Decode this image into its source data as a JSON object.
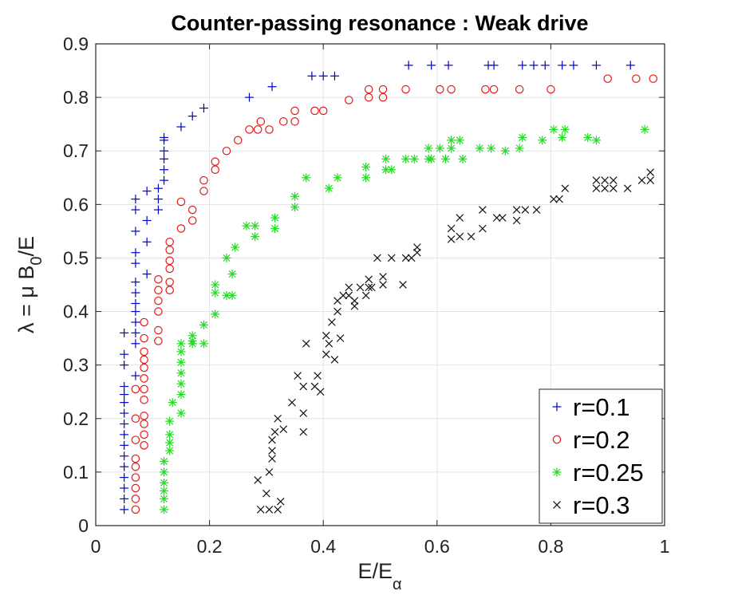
{
  "chart_data": {
    "type": "scatter",
    "title": "Counter-passing resonance : Weak drive",
    "xlabel": "E/E",
    "xlabel_sub": "α",
    "ylabel_pre": "λ = μ B",
    "ylabel_sub": "0",
    "ylabel_post": "/E",
    "xlim": [
      0,
      1
    ],
    "ylim": [
      0,
      0.9
    ],
    "xticks": [
      0,
      0.2,
      0.4,
      0.6,
      0.8,
      1
    ],
    "xtick_labels": [
      "0",
      "0.2",
      "0.4",
      "0.6",
      "0.8",
      "1"
    ],
    "yticks": [
      0,
      0.1,
      0.2,
      0.3,
      0.4,
      0.5,
      0.6,
      0.7,
      0.8,
      0.9
    ],
    "ytick_labels": [
      "0",
      "0.1",
      "0.2",
      "0.3",
      "0.4",
      "0.5",
      "0.6",
      "0.7",
      "0.8",
      "0.9"
    ],
    "grid": true,
    "legend_position": "bottom-right",
    "series": [
      {
        "name": "r=0.1",
        "marker": "plus",
        "color": "#0000cc",
        "x": [
          0.05,
          0.05,
          0.05,
          0.05,
          0.05,
          0.05,
          0.05,
          0.05,
          0.05,
          0.05,
          0.05,
          0.05,
          0.05,
          0.05,
          0.05,
          0.05,
          0.07,
          0.07,
          0.07,
          0.07,
          0.07,
          0.07,
          0.07,
          0.07,
          0.07,
          0.07,
          0.07,
          0.07,
          0.07,
          0.09,
          0.09,
          0.09,
          0.09,
          0.11,
          0.11,
          0.11,
          0.12,
          0.12,
          0.12,
          0.12,
          0.12,
          0.12,
          0.15,
          0.17,
          0.19,
          0.27,
          0.31,
          0.38,
          0.4,
          0.42,
          0.55,
          0.59,
          0.62,
          0.69,
          0.7,
          0.75,
          0.77,
          0.79,
          0.82,
          0.84,
          0.88,
          0.94
        ],
        "y": [
          0.03,
          0.05,
          0.07,
          0.09,
          0.11,
          0.13,
          0.15,
          0.17,
          0.19,
          0.21,
          0.23,
          0.245,
          0.26,
          0.3,
          0.32,
          0.36,
          0.28,
          0.34,
          0.36,
          0.38,
          0.4,
          0.415,
          0.435,
          0.455,
          0.49,
          0.51,
          0.55,
          0.59,
          0.61,
          0.47,
          0.53,
          0.57,
          0.625,
          0.59,
          0.61,
          0.63,
          0.645,
          0.665,
          0.685,
          0.7,
          0.72,
          0.725,
          0.745,
          0.765,
          0.78,
          0.8,
          0.82,
          0.84,
          0.84,
          0.84,
          0.86,
          0.86,
          0.86,
          0.86,
          0.86,
          0.86,
          0.86,
          0.86,
          0.86,
          0.86,
          0.86,
          0.86
        ]
      },
      {
        "name": "r=0.2",
        "marker": "circle",
        "color": "#e31a1c",
        "x": [
          0.07,
          0.07,
          0.07,
          0.07,
          0.07,
          0.07,
          0.07,
          0.07,
          0.07,
          0.085,
          0.085,
          0.085,
          0.085,
          0.085,
          0.085,
          0.085,
          0.085,
          0.085,
          0.085,
          0.085,
          0.085,
          0.11,
          0.11,
          0.11,
          0.11,
          0.11,
          0.11,
          0.13,
          0.13,
          0.13,
          0.13,
          0.13,
          0.13,
          0.15,
          0.15,
          0.17,
          0.17,
          0.19,
          0.19,
          0.21,
          0.21,
          0.23,
          0.25,
          0.27,
          0.285,
          0.29,
          0.305,
          0.33,
          0.35,
          0.35,
          0.385,
          0.4,
          0.445,
          0.48,
          0.48,
          0.505,
          0.505,
          0.545,
          0.605,
          0.625,
          0.685,
          0.7,
          0.745,
          0.8,
          0.9,
          0.95,
          0.98
        ],
        "y": [
          0.03,
          0.05,
          0.07,
          0.09,
          0.11,
          0.125,
          0.16,
          0.2,
          0.255,
          0.15,
          0.17,
          0.19,
          0.205,
          0.235,
          0.255,
          0.275,
          0.295,
          0.31,
          0.325,
          0.35,
          0.38,
          0.345,
          0.365,
          0.4,
          0.42,
          0.44,
          0.46,
          0.44,
          0.455,
          0.48,
          0.495,
          0.515,
          0.53,
          0.555,
          0.605,
          0.57,
          0.59,
          0.625,
          0.645,
          0.665,
          0.68,
          0.7,
          0.72,
          0.74,
          0.74,
          0.755,
          0.74,
          0.755,
          0.755,
          0.775,
          0.775,
          0.775,
          0.795,
          0.8,
          0.815,
          0.8,
          0.815,
          0.815,
          0.815,
          0.815,
          0.815,
          0.815,
          0.815,
          0.815,
          0.835,
          0.835,
          0.835
        ]
      },
      {
        "name": "r=0.25",
        "marker": "star",
        "color": "#22dd22",
        "x": [
          0.12,
          0.12,
          0.12,
          0.12,
          0.12,
          0.12,
          0.13,
          0.13,
          0.13,
          0.13,
          0.135,
          0.15,
          0.15,
          0.15,
          0.15,
          0.15,
          0.15,
          0.15,
          0.17,
          0.17,
          0.17,
          0.19,
          0.19,
          0.21,
          0.21,
          0.21,
          0.23,
          0.23,
          0.24,
          0.24,
          0.245,
          0.265,
          0.28,
          0.28,
          0.315,
          0.315,
          0.35,
          0.35,
          0.37,
          0.41,
          0.425,
          0.475,
          0.475,
          0.51,
          0.51,
          0.52,
          0.545,
          0.56,
          0.585,
          0.585,
          0.59,
          0.605,
          0.615,
          0.625,
          0.625,
          0.64,
          0.645,
          0.675,
          0.695,
          0.72,
          0.745,
          0.75,
          0.785,
          0.805,
          0.82,
          0.825,
          0.865,
          0.88,
          0.965
        ],
        "y": [
          0.03,
          0.05,
          0.065,
          0.08,
          0.1,
          0.12,
          0.14,
          0.155,
          0.17,
          0.195,
          0.23,
          0.21,
          0.245,
          0.265,
          0.285,
          0.305,
          0.325,
          0.34,
          0.34,
          0.345,
          0.355,
          0.34,
          0.375,
          0.395,
          0.435,
          0.45,
          0.43,
          0.5,
          0.43,
          0.47,
          0.52,
          0.56,
          0.54,
          0.56,
          0.555,
          0.575,
          0.595,
          0.615,
          0.65,
          0.63,
          0.65,
          0.65,
          0.67,
          0.665,
          0.685,
          0.665,
          0.685,
          0.685,
          0.685,
          0.705,
          0.685,
          0.705,
          0.685,
          0.705,
          0.72,
          0.72,
          0.685,
          0.705,
          0.705,
          0.7,
          0.705,
          0.725,
          0.72,
          0.74,
          0.725,
          0.74,
          0.725,
          0.72,
          0.74
        ]
      },
      {
        "name": "r=0.3",
        "marker": "x",
        "color": "#111111",
        "x": [
          0.285,
          0.29,
          0.3,
          0.305,
          0.305,
          0.31,
          0.31,
          0.31,
          0.315,
          0.32,
          0.325,
          0.32,
          0.33,
          0.345,
          0.355,
          0.365,
          0.365,
          0.365,
          0.37,
          0.385,
          0.39,
          0.395,
          0.405,
          0.405,
          0.41,
          0.415,
          0.42,
          0.425,
          0.425,
          0.43,
          0.435,
          0.445,
          0.445,
          0.455,
          0.455,
          0.465,
          0.475,
          0.48,
          0.48,
          0.485,
          0.495,
          0.505,
          0.505,
          0.52,
          0.54,
          0.545,
          0.555,
          0.565,
          0.565,
          0.625,
          0.625,
          0.64,
          0.64,
          0.66,
          0.68,
          0.68,
          0.705,
          0.715,
          0.74,
          0.74,
          0.755,
          0.775,
          0.805,
          0.815,
          0.825,
          0.88,
          0.88,
          0.895,
          0.895,
          0.91,
          0.91,
          0.935,
          0.96,
          0.975,
          0.975
        ],
        "y": [
          0.085,
          0.03,
          0.06,
          0.03,
          0.1,
          0.125,
          0.14,
          0.16,
          0.175,
          0.03,
          0.045,
          0.2,
          0.18,
          0.23,
          0.28,
          0.21,
          0.26,
          0.175,
          0.34,
          0.26,
          0.28,
          0.25,
          0.32,
          0.355,
          0.34,
          0.38,
          0.31,
          0.4,
          0.42,
          0.35,
          0.43,
          0.43,
          0.445,
          0.42,
          0.41,
          0.445,
          0.43,
          0.46,
          0.445,
          0.445,
          0.5,
          0.45,
          0.465,
          0.5,
          0.45,
          0.5,
          0.5,
          0.51,
          0.52,
          0.535,
          0.555,
          0.54,
          0.575,
          0.54,
          0.555,
          0.59,
          0.575,
          0.575,
          0.59,
          0.57,
          0.59,
          0.59,
          0.61,
          0.61,
          0.63,
          0.63,
          0.645,
          0.63,
          0.645,
          0.63,
          0.645,
          0.63,
          0.645,
          0.66,
          0.645
        ]
      }
    ]
  }
}
